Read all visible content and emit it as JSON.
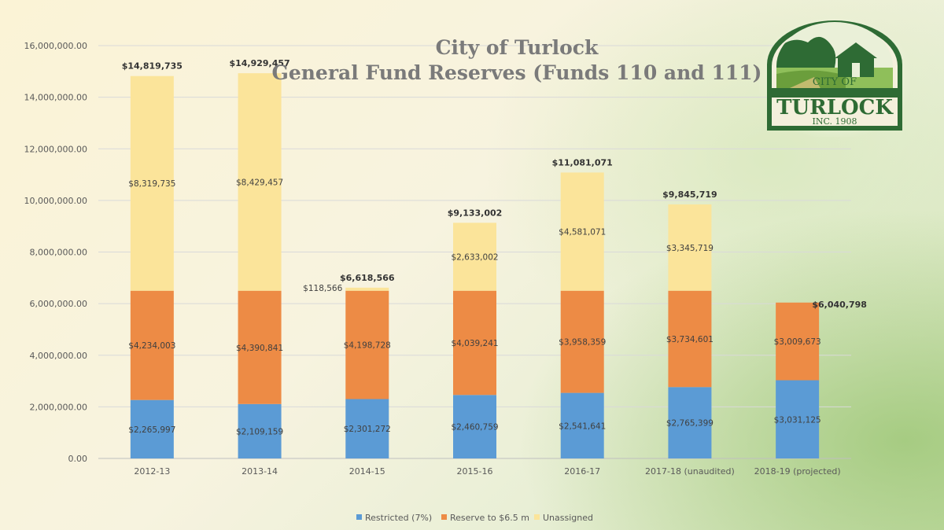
{
  "chart_data": {
    "type": "bar",
    "stacked": true,
    "title": [
      "City of Turlock",
      "General Fund Reserves  (Funds 110 and 111)"
    ],
    "categories": [
      "2012-13",
      "2013-14",
      "2014-15",
      "2015-16",
      "2016-17",
      "2017-18 (unaudited)",
      "2018-19 (projected)"
    ],
    "series": [
      {
        "name": "Restricted (7%)",
        "color": "#5b9bd5",
        "values": [
          2265997,
          2109159,
          2301272,
          2460759,
          2541641,
          2765399,
          3031125
        ],
        "labels": [
          "$2,265,997",
          "$2,109,159",
          "$2,301,272",
          "$2,460,759",
          "$2,541,641",
          "$2,765,399",
          "$3,031,125"
        ]
      },
      {
        "name": "Reserve to $6.5 m",
        "color": "#ed8b45",
        "values": [
          4234003,
          4390841,
          4198728,
          4039241,
          3958359,
          3734601,
          3009673
        ],
        "labels": [
          "$4,234,003",
          "$4,390,841",
          "$4,198,728",
          "$4,039,241",
          "$3,958,359",
          "$3,734,601",
          "$3,009,673"
        ]
      },
      {
        "name": "Unassigned",
        "color": "#fbe49a",
        "values": [
          8319735,
          8429457,
          118566,
          2633002,
          4581071,
          3345719,
          0
        ],
        "labels": [
          "$8,319,735",
          "$8,429,457",
          "$118,566",
          "$2,633,002",
          "$4,581,071",
          "$3,345,719",
          ""
        ]
      }
    ],
    "totals": [
      "$14,819,735",
      "$14,929,457",
      "$6,618,566",
      "$9,133,002",
      "$11,081,071",
      "$9,845,719",
      "$6,040,798"
    ],
    "yticks": [
      "0.00",
      "2,000,000.00",
      "4,000,000.00",
      "6,000,000.00",
      "8,000,000.00",
      "10,000,000.00",
      "12,000,000.00",
      "14,000,000.00",
      "16,000,000.00"
    ],
    "ylim": [
      0,
      16000000
    ],
    "grid": true,
    "legend_position": "bottom"
  },
  "logo": {
    "line1": "CITY OF",
    "line2": "TURLOCK",
    "line3": "INC. 1908"
  }
}
